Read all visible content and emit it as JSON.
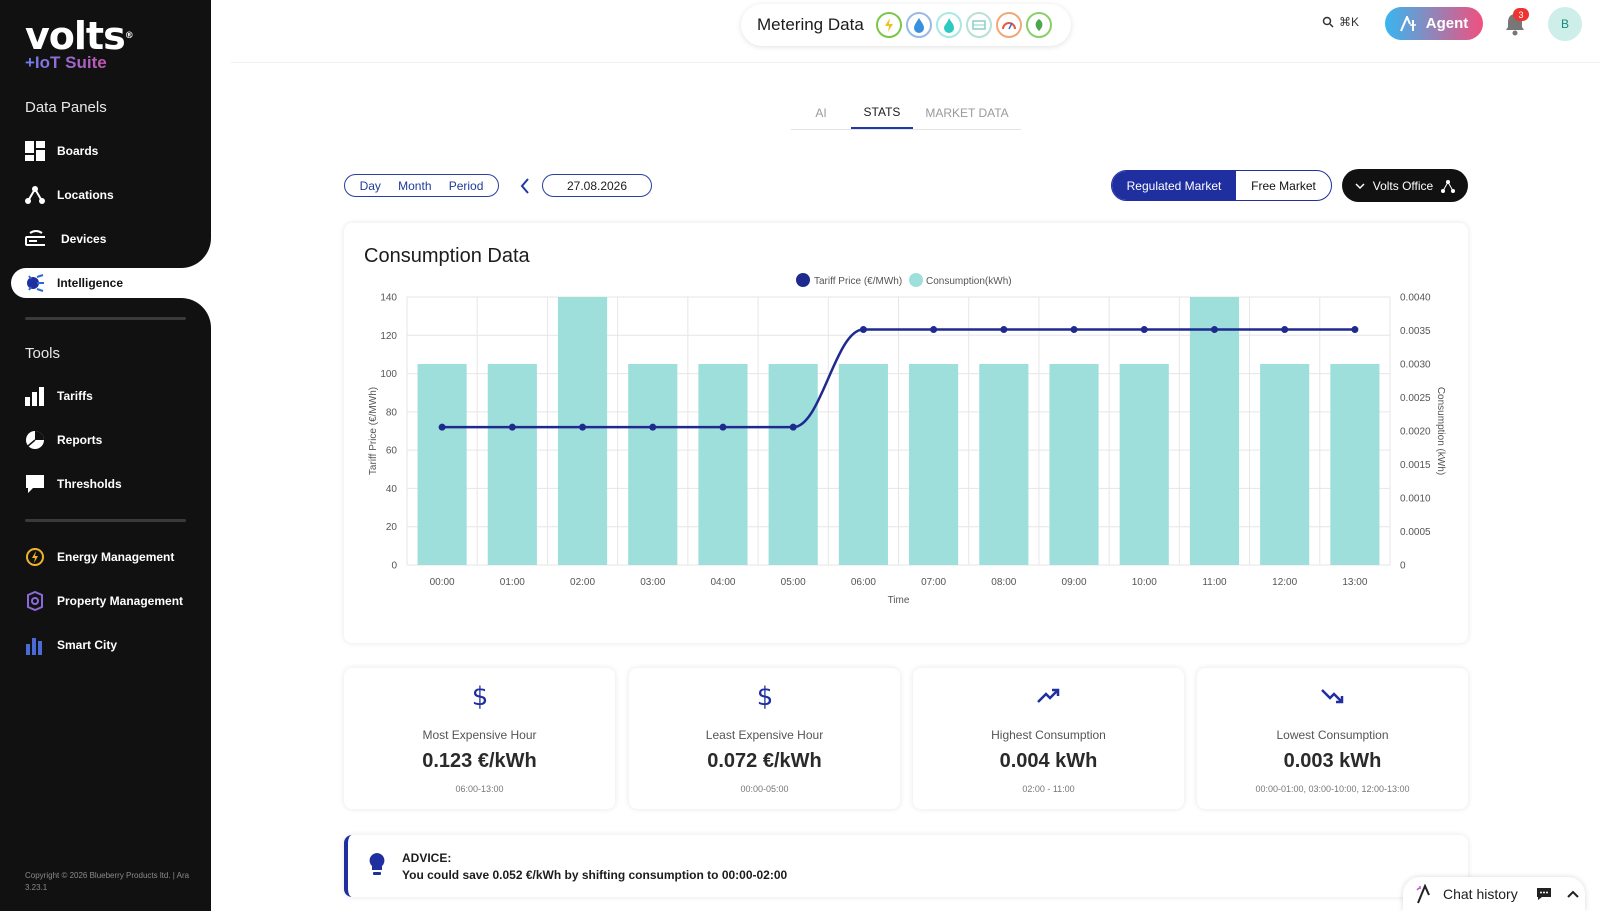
{
  "brand": {
    "name": "volts",
    "suite": "+IoT Suite"
  },
  "sidebar": {
    "data_panels_heading": "Data Panels",
    "data_items": [
      {
        "label": "Boards",
        "icon": "boards-icon"
      },
      {
        "label": "Locations",
        "icon": "locations-icon"
      },
      {
        "label": "Devices",
        "icon": "devices-icon"
      }
    ],
    "active_item": {
      "label": "Intelligence",
      "icon": "intelligence-icon"
    },
    "tools_heading": "Tools",
    "tool_items": [
      {
        "label": "Tariffs",
        "icon": "tariffs-icon"
      },
      {
        "label": "Reports",
        "icon": "reports-icon"
      },
      {
        "label": "Thresholds",
        "icon": "thresholds-icon"
      }
    ],
    "module_items": [
      {
        "label": "Energy Management",
        "icon": "energy-management-icon"
      },
      {
        "label": "Property Management",
        "icon": "property-management-icon"
      },
      {
        "label": "Smart City",
        "icon": "smart-city-icon"
      }
    ],
    "copyright": "Copyright © 2026 Blueberry Products ltd. | Ara 3.23.1"
  },
  "topbar": {
    "title": "Metering Data",
    "utility_icons": [
      "electricity-icon",
      "water-icon",
      "gas-icon",
      "hvac-icon",
      "heat-icon",
      "environment-icon"
    ],
    "search_shortcut": "⌘K",
    "agent_label": "Agent",
    "notification_count": "3",
    "avatar_initial": "B"
  },
  "tabs": [
    {
      "label": "AI",
      "active": false
    },
    {
      "label": "STATS",
      "active": true
    },
    {
      "label": "MARKET DATA",
      "active": false
    }
  ],
  "controls": {
    "periods": [
      "Day",
      "Month",
      "Period"
    ],
    "date": "27.08.2026",
    "market_options": [
      "Regulated Market",
      "Free Market"
    ],
    "market_selected": "Regulated Market",
    "location": "Volts Office"
  },
  "chart_data": {
    "type": "bar",
    "title": "Consumption Data",
    "categories": [
      "00:00",
      "01:00",
      "02:00",
      "03:00",
      "04:00",
      "05:00",
      "06:00",
      "07:00",
      "08:00",
      "09:00",
      "10:00",
      "11:00",
      "12:00",
      "13:00"
    ],
    "xlabel": "Time",
    "ylabel": "Tariff Price (€/MWh)",
    "y2label": "Consumption (kWh)",
    "ylim": [
      0,
      140
    ],
    "y2lim": [
      0,
      0.004
    ],
    "yticks": [
      0,
      20,
      40,
      60,
      80,
      100,
      120,
      140
    ],
    "y2ticks": [
      "0",
      "0.0005",
      "0.0010",
      "0.0015",
      "0.0020",
      "0.0025",
      "0.0030",
      "0.0035",
      "0.0040"
    ],
    "series": [
      {
        "name": "Tariff Price (€/MWh)",
        "kind": "line",
        "axis": "left",
        "color": "#1f2a8f",
        "values": [
          72,
          72,
          72,
          72,
          72,
          72,
          123,
          123,
          123,
          123,
          123,
          123,
          123,
          123
        ]
      },
      {
        "name": "Consumption(kWh)",
        "kind": "bar",
        "axis": "right",
        "color": "#9edfdc",
        "values": [
          0.003,
          0.003,
          0.004,
          0.003,
          0.003,
          0.003,
          0.003,
          0.003,
          0.003,
          0.003,
          0.003,
          0.004,
          0.003,
          0.003
        ]
      }
    ],
    "grid": true,
    "legend": "top-center"
  },
  "stats": [
    {
      "label": "Most Expensive Hour",
      "value": "0.123 €/kWh",
      "range": "06:00-13:00",
      "icon": "dollar-icon"
    },
    {
      "label": "Least Expensive Hour",
      "value": "0.072 €/kWh",
      "range": "00:00-05:00",
      "icon": "dollar-icon"
    },
    {
      "label": "Highest Consumption",
      "value": "0.004 kWh",
      "range": "02:00 - 11:00",
      "icon": "trending-up-icon"
    },
    {
      "label": "Lowest Consumption",
      "value": "0.003 kWh",
      "range": "00:00-01:00, 03:00-10:00, 12:00-13:00",
      "icon": "trending-down-icon"
    }
  ],
  "advice": {
    "title": "ADVICE:",
    "text": "You could save 0.052 €/kWh by shifting consumption to 00:00-02:00"
  },
  "chat": {
    "label": "Chat history"
  }
}
